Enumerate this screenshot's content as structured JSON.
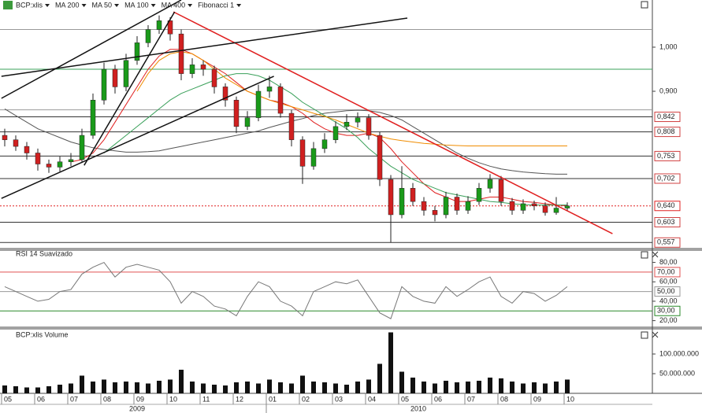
{
  "chart_data": [
    {
      "type": "candlestick",
      "name": "BCP:xlis",
      "categories": [
        "05",
        null,
        null,
        "06",
        null,
        null,
        "07",
        null,
        null,
        "08",
        null,
        null,
        "09",
        null,
        null,
        "10",
        null,
        null,
        "11",
        null,
        null,
        "12",
        null,
        null,
        "01",
        null,
        null,
        "02",
        null,
        null,
        "03",
        null,
        null,
        "04",
        null,
        null,
        "05",
        null,
        null,
        "06",
        null,
        null,
        "07",
        null,
        null,
        "08",
        null,
        null,
        "09",
        null,
        null,
        "10"
      ],
      "years": [
        "2009",
        "2010"
      ],
      "open": [
        0.8,
        0.79,
        0.775,
        0.76,
        0.735,
        0.728,
        0.74,
        0.745,
        0.8,
        0.88,
        0.95,
        0.91,
        0.97,
        1.01,
        1.04,
        1.06,
        1.03,
        0.94,
        0.96,
        0.95,
        0.91,
        0.88,
        0.82,
        0.84,
        0.9,
        0.91,
        0.85,
        0.79,
        0.73,
        0.77,
        0.79,
        0.82,
        0.83,
        0.84,
        0.8,
        0.7,
        0.62,
        0.68,
        0.65,
        0.63,
        0.62,
        0.66,
        0.63,
        0.65,
        0.68,
        0.7,
        0.65,
        0.63,
        0.645,
        0.64,
        0.625,
        0.635
      ],
      "high": [
        0.815,
        0.8,
        0.785,
        0.77,
        0.745,
        0.752,
        0.76,
        0.815,
        0.895,
        0.965,
        0.96,
        0.985,
        1.025,
        1.05,
        1.072,
        1.068,
        1.04,
        0.975,
        0.97,
        0.958,
        0.918,
        0.888,
        0.855,
        0.915,
        0.935,
        0.918,
        0.858,
        0.798,
        0.785,
        0.805,
        0.832,
        0.848,
        0.852,
        0.848,
        0.808,
        0.71,
        0.73,
        0.692,
        0.66,
        0.64,
        0.672,
        0.668,
        0.662,
        0.692,
        0.712,
        0.708,
        0.658,
        0.655,
        0.652,
        0.648,
        0.66,
        0.648
      ],
      "low": [
        0.775,
        0.765,
        0.745,
        0.72,
        0.715,
        0.718,
        0.73,
        0.738,
        0.792,
        0.87,
        0.895,
        0.9,
        0.96,
        1.0,
        1.03,
        1.015,
        0.925,
        0.93,
        0.935,
        0.895,
        0.865,
        0.805,
        0.812,
        0.832,
        0.885,
        0.84,
        0.775,
        0.69,
        0.722,
        0.76,
        0.782,
        0.812,
        0.818,
        0.79,
        0.685,
        0.557,
        0.612,
        0.64,
        0.618,
        0.605,
        0.612,
        0.62,
        0.622,
        0.642,
        0.67,
        0.64,
        0.62,
        0.622,
        0.63,
        0.618,
        0.62,
        0.628
      ],
      "close": [
        0.79,
        0.775,
        0.76,
        0.735,
        0.728,
        0.74,
        0.745,
        0.8,
        0.88,
        0.95,
        0.91,
        0.97,
        1.01,
        1.04,
        1.06,
        1.03,
        0.94,
        0.96,
        0.95,
        0.91,
        0.88,
        0.82,
        0.84,
        0.9,
        0.91,
        0.85,
        0.79,
        0.73,
        0.77,
        0.79,
        0.82,
        0.83,
        0.84,
        0.8,
        0.7,
        0.62,
        0.68,
        0.65,
        0.63,
        0.62,
        0.66,
        0.63,
        0.65,
        0.68,
        0.7,
        0.65,
        0.63,
        0.645,
        0.64,
        0.625,
        0.635,
        0.64
      ],
      "up_color": "#1a9a1a",
      "down_color": "#d02020",
      "ylim": [
        0.545,
        1.107
      ],
      "yticks": [
        {
          "value": 1.0,
          "label": "1,000"
        },
        {
          "value": 0.9,
          "label": "0,900"
        }
      ],
      "overlays": [
        {
          "name": "MA 200",
          "color": "#555555",
          "values": [
            0.86,
            0.845,
            0.83,
            0.815,
            0.805,
            0.795,
            0.785,
            0.778,
            0.772,
            0.768,
            0.765,
            0.762,
            0.762,
            0.763,
            0.765,
            0.77,
            0.775,
            0.78,
            0.785,
            0.79,
            0.795,
            0.8,
            0.805,
            0.81,
            0.818,
            0.825,
            0.832,
            0.838,
            0.845,
            0.85,
            0.853,
            0.856,
            0.857,
            0.856,
            0.852,
            0.845,
            0.835,
            0.82,
            0.805,
            0.79,
            0.775,
            0.76,
            0.748,
            0.738,
            0.73,
            0.724,
            0.72,
            0.717,
            0.715,
            0.713,
            0.712,
            0.712
          ]
        },
        {
          "name": "MA 50",
          "color": "#e02020",
          "values": [
            null,
            null,
            null,
            null,
            null,
            null,
            0.74,
            0.745,
            0.76,
            0.79,
            0.83,
            0.87,
            0.91,
            0.95,
            0.98,
            0.995,
            0.995,
            0.985,
            0.97,
            0.955,
            0.94,
            0.92,
            0.9,
            0.89,
            0.88,
            0.875,
            0.865,
            0.85,
            0.83,
            0.815,
            0.805,
            0.8,
            0.8,
            0.805,
            0.795,
            0.77,
            0.74,
            0.715,
            0.69,
            0.67,
            0.66,
            0.65,
            0.65,
            0.655,
            0.66,
            0.66,
            0.655,
            0.65,
            0.648,
            0.645,
            0.642,
            0.64
          ]
        },
        {
          "name": "MA 100",
          "color": "#3aa05a",
          "values": [
            null,
            null,
            null,
            null,
            null,
            null,
            null,
            null,
            null,
            0.76,
            0.78,
            0.8,
            0.82,
            0.84,
            0.86,
            0.88,
            0.895,
            0.905,
            0.915,
            0.925,
            0.935,
            0.94,
            0.94,
            0.935,
            0.925,
            0.91,
            0.895,
            0.875,
            0.86,
            0.845,
            0.83,
            0.815,
            0.795,
            0.77,
            0.75,
            0.73,
            0.715,
            0.7,
            0.69,
            0.68,
            0.67,
            0.665,
            0.66,
            0.655,
            0.65,
            0.648,
            0.645,
            0.643,
            0.642,
            0.642,
            0.642,
            0.642
          ]
        },
        {
          "name": "MA 400",
          "color": "#f08c00",
          "values": [
            null,
            null,
            null,
            null,
            null,
            null,
            null,
            null,
            null,
            null,
            null,
            null,
            0.9,
            0.94,
            0.97,
            0.985,
            0.99,
            0.985,
            0.97,
            0.95,
            0.93,
            0.915,
            0.9,
            0.89,
            0.88,
            0.872,
            0.865,
            0.858,
            0.85,
            0.843,
            0.835,
            0.825,
            0.815,
            0.805,
            0.798,
            0.792,
            0.788,
            0.785,
            0.782,
            0.78,
            0.778,
            0.777,
            0.776,
            0.776,
            0.776,
            0.776,
            0.776,
            0.776,
            0.776,
            0.776,
            0.776,
            0.776
          ]
        }
      ],
      "fibonacci": {
        "name": "Fibonacci 1",
        "levels": [
          {
            "value": 0.842,
            "label": "0,842",
            "color": "#333333"
          },
          {
            "value": 0.808,
            "label": "0,808",
            "color": "#333333"
          },
          {
            "value": 0.753,
            "label": "0,753",
            "color": "#333333"
          },
          {
            "value": 0.702,
            "label": "0,702",
            "color": "#333333"
          },
          {
            "value": 0.64,
            "label": "0,640",
            "color": "#e02020",
            "line_style": "dotted"
          },
          {
            "value": 0.603,
            "label": "0,603",
            "color": "#333333"
          },
          {
            "value": 0.557,
            "label": "0,557",
            "color": "#333333"
          }
        ]
      },
      "hlines": [
        {
          "value": 1.04,
          "color": "#999999"
        },
        {
          "value": 0.95,
          "color": "#3aa05a"
        },
        {
          "value": 0.858,
          "color": "#999999"
        }
      ],
      "trendlines": [
        {
          "color": "#e02020",
          "x": [
            15.3,
            55.1
          ],
          "y": [
            1.08,
            0.577
          ]
        },
        {
          "color": "#111111",
          "x": [
            -0.3,
            36.5
          ],
          "y": [
            0.934,
            1.066
          ]
        },
        {
          "color": "#111111",
          "x": [
            -0.3,
            16
          ],
          "y": [
            0.884,
            1.107
          ]
        },
        {
          "color": "#111111",
          "x": [
            -0.3,
            24.4
          ],
          "y": [
            0.657,
            0.934
          ]
        },
        {
          "color": "#111111",
          "x": [
            7.2,
            15.4
          ],
          "y": [
            0.732,
            1.08
          ]
        }
      ]
    },
    {
      "type": "line",
      "title": "RSI 14 Suavizado",
      "color": "#777777",
      "values": [
        55,
        50,
        45,
        40,
        42,
        50,
        52,
        68,
        75,
        80,
        65,
        75,
        78,
        75,
        72,
        60,
        38,
        50,
        45,
        35,
        32,
        25,
        45,
        60,
        55,
        40,
        35,
        25,
        50,
        55,
        60,
        58,
        62,
        45,
        28,
        22,
        55,
        45,
        40,
        38,
        55,
        45,
        52,
        60,
        65,
        45,
        38,
        50,
        48,
        40,
        46,
        55
      ],
      "ylim": [
        14,
        91
      ],
      "yticks": [
        {
          "value": 80,
          "label": "80,00"
        },
        {
          "value": 60,
          "label": "60,00"
        },
        {
          "value": 40,
          "label": "40,00"
        },
        {
          "value": 20,
          "label": "20,00"
        }
      ],
      "levels": [
        {
          "value": 70,
          "label": "70,00",
          "color": "#e05050"
        },
        {
          "value": 50,
          "label": "50,00",
          "color": "#999999"
        },
        {
          "value": 30,
          "label": "30,00",
          "color": "#2a8a2a"
        }
      ]
    },
    {
      "type": "bar",
      "title": "BCP:xlis Volume",
      "color": "#111111",
      "values": [
        20000000,
        18000000,
        15000000,
        15000000,
        18000000,
        22000000,
        25000000,
        45000000,
        30000000,
        35000000,
        28000000,
        30000000,
        28000000,
        25000000,
        32000000,
        35000000,
        60000000,
        30000000,
        25000000,
        22000000,
        20000000,
        28000000,
        30000000,
        25000000,
        35000000,
        28000000,
        25000000,
        45000000,
        30000000,
        28000000,
        25000000,
        22000000,
        30000000,
        35000000,
        75000000,
        155000000,
        55000000,
        40000000,
        30000000,
        25000000,
        32000000,
        28000000,
        30000000,
        32000000,
        40000000,
        38000000,
        30000000,
        25000000,
        28000000,
        25000000,
        30000000,
        35000000
      ],
      "ylim": [
        0,
        160000000
      ],
      "yticks": [
        {
          "value": 50000000,
          "label": "50.000.000"
        },
        {
          "value": 100000000,
          "label": "100.000.000"
        }
      ]
    }
  ]
}
